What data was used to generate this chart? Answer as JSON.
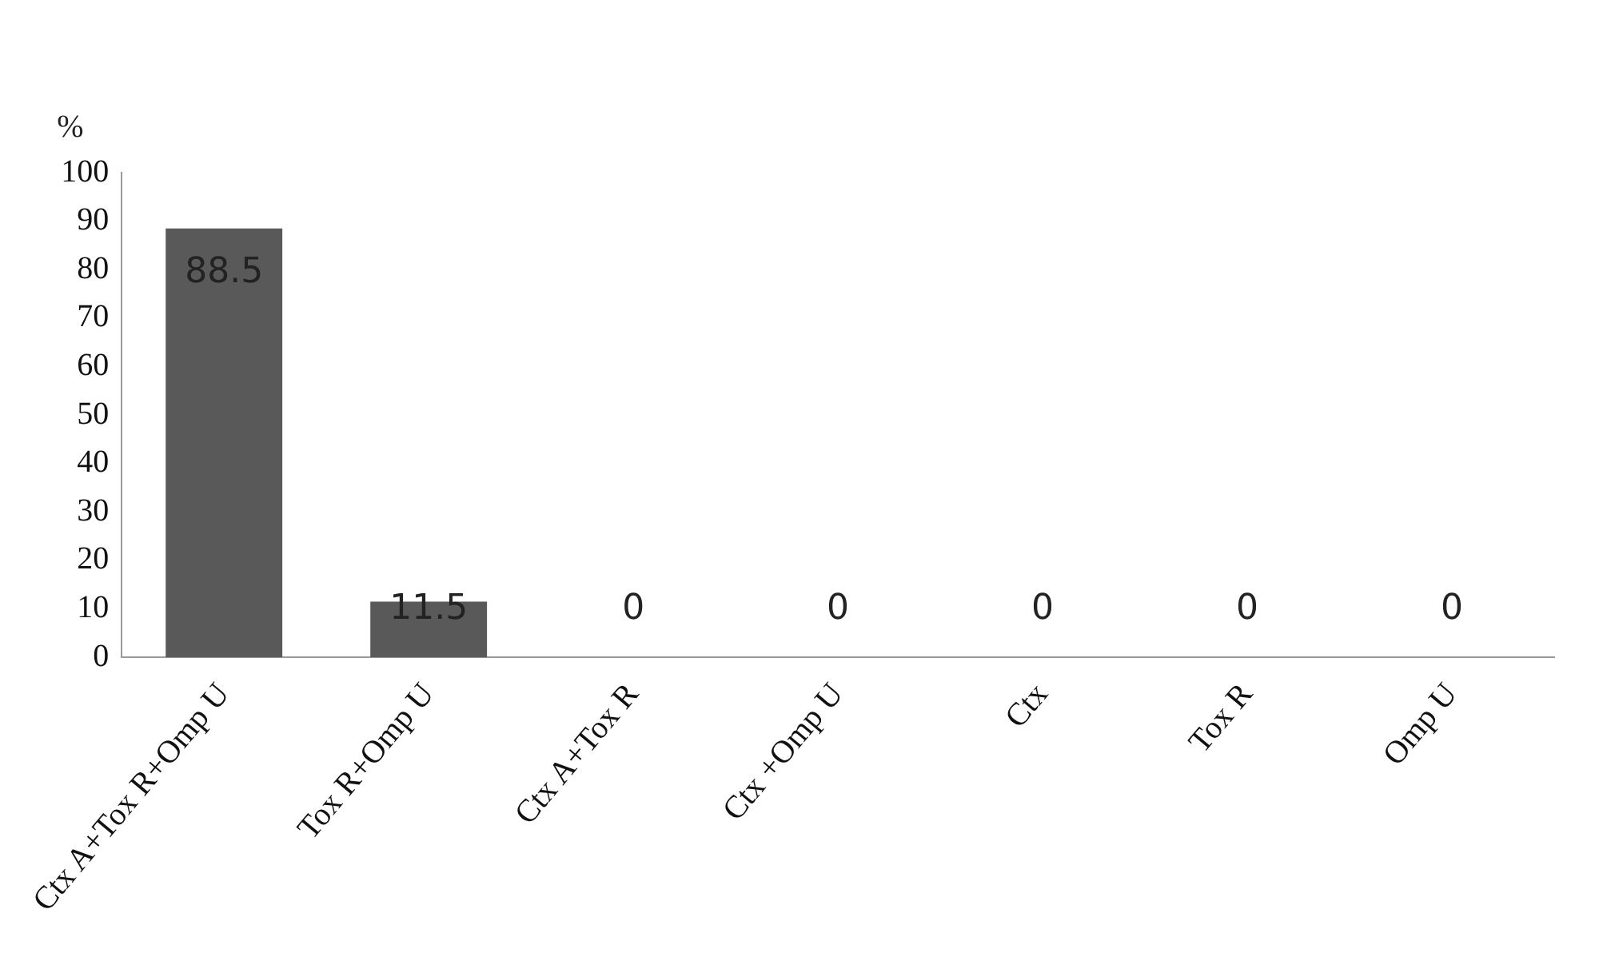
{
  "chart_data": {
    "type": "bar",
    "ylabel": "%",
    "categories": [
      "Ctx A+Tox R+Omp U",
      "Tox R+Omp U",
      "Ctx A+Tox R",
      "Ctx +Omp U",
      "Ctx",
      "Tox R",
      "Omp U"
    ],
    "values": [
      88.5,
      11.5,
      0,
      0,
      0,
      0,
      0
    ],
    "color": "#595959",
    "ylim": [
      0,
      100
    ],
    "yticks": [
      0,
      10,
      20,
      30,
      40,
      50,
      60,
      70,
      80,
      90,
      100
    ],
    "grid": false,
    "legend": false,
    "data_labels": true
  }
}
